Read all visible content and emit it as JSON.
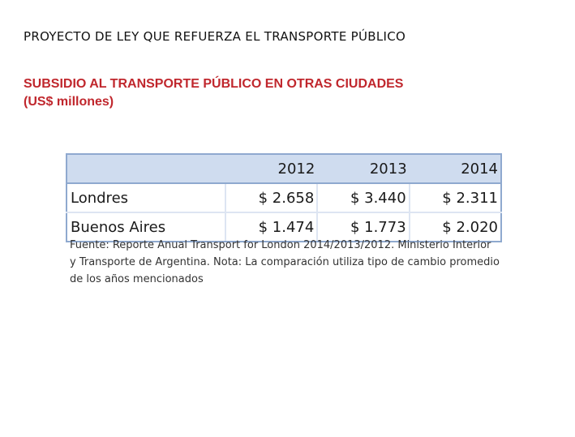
{
  "page_title": "PROYECTO DE LEY QUE REFUERZA EL TRANSPORTE PÚBLICO",
  "subtitle": {
    "line1": "SUBSIDIO AL TRANSPORTE PÚBLICO EN OTRAS CIUDADES",
    "line2": "(US$ millones)"
  },
  "table": {
    "columns": [
      "",
      "2012",
      "2013",
      "2014"
    ],
    "rows": [
      {
        "city": "Londres",
        "values": [
          "$ 2.658",
          "$ 3.440",
          "$ 2.311"
        ]
      },
      {
        "city": "Buenos Aires",
        "values": [
          "$ 1.474",
          "$ 1.773",
          "$ 2.020"
        ]
      }
    ]
  },
  "source_note": {
    "line1": "Fuente: Reporte Anual Transport for London 2014/2013/2012. Ministerio Interior",
    "line2": "y Transporte de Argentina. Nota: La comparación utiliza tipo de cambio promedio",
    "line3": "de los años mencionados"
  },
  "colors": {
    "subtitle": "#c0272d",
    "header_fill": "#cfdcef",
    "table_border": "#8fa9cf"
  }
}
